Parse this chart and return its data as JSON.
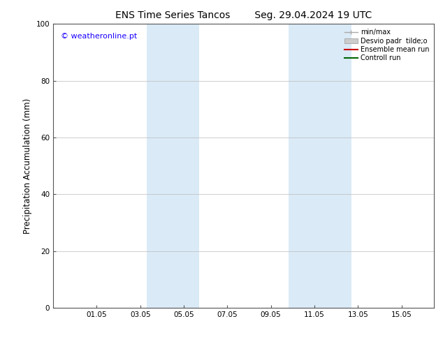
{
  "title_left": "ENS Time Series Tancos",
  "title_right": "Seg. 29.04.2024 19 UTC",
  "ylabel": "Precipitation Accumulation (mm)",
  "ylim": [
    0,
    100
  ],
  "yticks": [
    0,
    20,
    40,
    60,
    80,
    100
  ],
  "xtick_labels": [
    "01.05",
    "03.05",
    "05.05",
    "07.05",
    "09.05",
    "11.05",
    "13.05",
    "15.05"
  ],
  "xtick_positions": [
    2,
    4,
    6,
    8,
    10,
    12,
    14,
    16
  ],
  "xlim": [
    0.0,
    17.5
  ],
  "shaded_bands": [
    {
      "x_start": 4.3,
      "x_end": 6.7
    },
    {
      "x_start": 10.8,
      "x_end": 13.7
    }
  ],
  "band_color": "#daeaf7",
  "watermark_text": "© weatheronline.pt",
  "watermark_color": "#1a00ff",
  "legend_items": [
    {
      "label": "min/max",
      "color": "#aaaaaa",
      "lw": 1.0,
      "style": "minmax"
    },
    {
      "label": "Desvio padr  tilde;o",
      "color": "#cccccc",
      "lw": 5,
      "style": "band"
    },
    {
      "label": "Ensemble mean run",
      "color": "#cc0000",
      "lw": 1.5,
      "style": "line"
    },
    {
      "label": "Controll run",
      "color": "#006600",
      "lw": 1.5,
      "style": "line"
    }
  ],
  "bg_color": "#ffffff",
  "plot_bg_color": "#ffffff",
  "grid_color": "#bbbbbb",
  "tick_label_fontsize": 7.5,
  "axis_label_fontsize": 8.5,
  "title_fontsize": 10,
  "watermark_fontsize": 8,
  "legend_fontsize": 7
}
